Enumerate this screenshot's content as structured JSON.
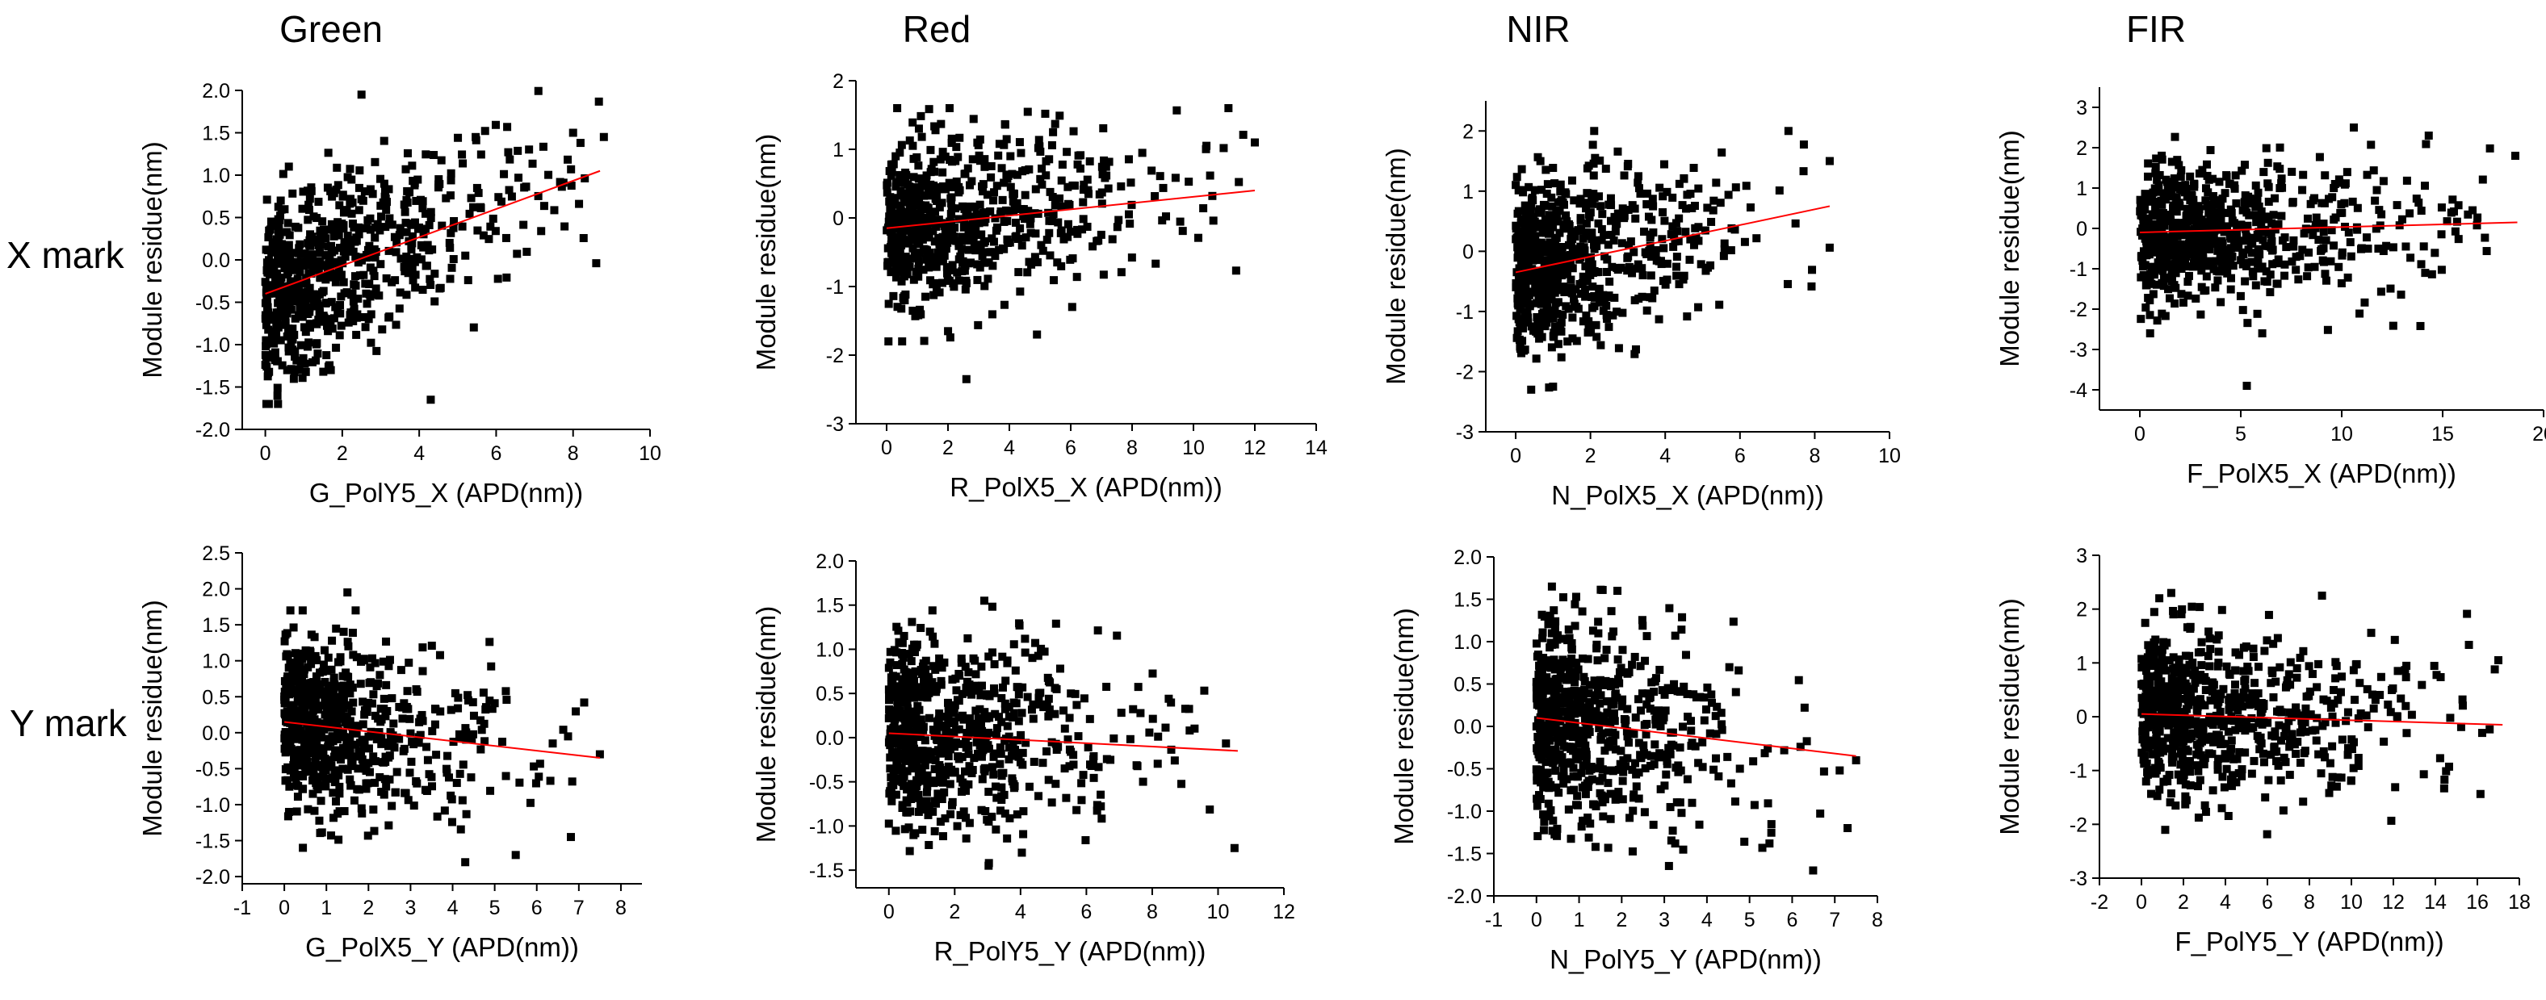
{
  "figure": {
    "column_titles": [
      "Green",
      "Red",
      "NIR",
      "FIR"
    ],
    "row_labels": [
      "X mark",
      "Y mark"
    ]
  },
  "chart_data": [
    {
      "type": "scatter",
      "xlabel": "G_PolY5_X (APD(nm))",
      "ylabel": "Module residue(nm)",
      "xlim": [
        -0.6,
        10
      ],
      "ylim": [
        -2.0,
        2.0
      ],
      "xticks": [
        0,
        2,
        4,
        6,
        8,
        10
      ],
      "xtick_labels": [
        "0",
        "2",
        "4",
        "6",
        "8",
        "10"
      ],
      "yticks": [
        -2.0,
        -1.5,
        -1.0,
        -0.5,
        0.0,
        0.5,
        1.0,
        1.5,
        2.0
      ],
      "ytick_labels": [
        "-2.0",
        "-1.5",
        "-1.0",
        "-0.5",
        "0.0",
        "0.5",
        "1.0",
        "1.5",
        "2.0"
      ],
      "fit": {
        "x": [
          0,
          8.7
        ],
        "y": [
          -0.4,
          1.05
        ]
      },
      "point_count": 700,
      "x_distribution": {
        "scale": 2.2,
        "max": 8.8
      },
      "y_noise_sd": 0.55,
      "y_clip": [
        -1.7,
        2.0
      ],
      "outliers": [
        [
          2.5,
          1.95
        ],
        [
          4.3,
          -1.65
        ],
        [
          8.0,
          1.5
        ],
        [
          8.8,
          1.45
        ]
      ]
    },
    {
      "type": "scatter",
      "xlabel": "R_PolX5_X (APD(nm))",
      "ylabel": "Module residue(nm)",
      "xlim": [
        -1,
        14
      ],
      "ylim": [
        -3,
        2
      ],
      "xticks": [
        0,
        2,
        4,
        6,
        8,
        10,
        12,
        14
      ],
      "xtick_labels": [
        "0",
        "2",
        "4",
        "6",
        "8",
        "10",
        "12",
        "14"
      ],
      "yticks": [
        -3,
        -2,
        -1,
        0,
        1,
        2
      ],
      "ytick_labels": [
        "-3",
        "-2",
        "-1",
        "0",
        "1",
        "2"
      ],
      "fit": {
        "x": [
          0,
          12
        ],
        "y": [
          -0.15,
          0.4
        ]
      },
      "point_count": 700,
      "x_distribution": {
        "scale": 2.8,
        "max": 12
      },
      "y_noise_sd": 0.6,
      "y_clip": [
        -1.8,
        1.6
      ],
      "outliers": [
        [
          2.6,
          -2.35
        ],
        [
          4.9,
          -1.7
        ],
        [
          12.0,
          1.1
        ]
      ]
    },
    {
      "type": "scatter",
      "xlabel": "N_PolX5_X (APD(nm))",
      "ylabel": "Module residue(nm)",
      "xlim": [
        -0.8,
        10
      ],
      "ylim": [
        -3,
        2.5
      ],
      "xticks": [
        0,
        2,
        4,
        6,
        8,
        10
      ],
      "xtick_labels": [
        "0",
        "2",
        "4",
        "6",
        "8",
        "10"
      ],
      "yticks": [
        -3,
        -2,
        -1,
        0,
        1,
        2
      ],
      "ytick_labels": [
        "-3",
        "-2",
        "-1",
        "0",
        "1",
        "2"
      ],
      "fit": {
        "x": [
          0,
          8.4
        ],
        "y": [
          -0.35,
          0.75
        ]
      },
      "point_count": 700,
      "x_distribution": {
        "scale": 2.0,
        "max": 8.5
      },
      "y_noise_sd": 0.7,
      "y_clip": [
        -2.3,
        2.0
      ],
      "outliers": [
        [
          1.0,
          -2.25
        ],
        [
          2.1,
          2.0
        ],
        [
          8.4,
          1.5
        ]
      ]
    },
    {
      "type": "scatter",
      "xlabel": "F_PolX5_X (APD(nm))",
      "ylabel": "Module residue(nm)",
      "xlim": [
        -2,
        20
      ],
      "ylim": [
        -4.5,
        3.5
      ],
      "xticks": [
        0,
        5,
        10,
        15,
        20
      ],
      "xtick_labels": [
        "0",
        "5",
        "10",
        "15",
        "20"
      ],
      "yticks": [
        -4,
        -3,
        -2,
        -1,
        0,
        1,
        2,
        3
      ],
      "ytick_labels": [
        "-4",
        "-3",
        "-2",
        "-1",
        "0",
        "1",
        "2",
        "3"
      ],
      "fit": {
        "x": [
          0,
          18.7
        ],
        "y": [
          -0.1,
          0.15
        ]
      },
      "point_count": 700,
      "x_distribution": {
        "scale": 5.0,
        "max": 18.7
      },
      "y_noise_sd": 0.85,
      "y_clip": [
        -2.6,
        2.3
      ],
      "outliers": [
        [
          5.3,
          -3.9
        ],
        [
          10.6,
          2.5
        ],
        [
          18.6,
          1.8
        ]
      ]
    },
    {
      "type": "scatter",
      "xlabel": "G_PolX5_Y (APD(nm))",
      "ylabel": "Module residue(nm)",
      "xlim": [
        -1,
        8.5
      ],
      "ylim": [
        -2.1,
        2.5
      ],
      "xticks": [
        -1,
        0,
        1,
        2,
        3,
        4,
        5,
        6,
        7,
        8
      ],
      "xtick_labels": [
        "-1",
        "0",
        "1",
        "2",
        "3",
        "4",
        "5",
        "6",
        "7",
        "8"
      ],
      "yticks": [
        -2.0,
        -1.5,
        -1.0,
        -0.5,
        0.0,
        0.5,
        1.0,
        1.5,
        2.0,
        2.5
      ],
      "ytick_labels": [
        "-2.0",
        "-1.5",
        "-1.0",
        "-0.5",
        "0.0",
        "0.5",
        "1.0",
        "1.5",
        "2.0",
        "2.5"
      ],
      "fit": {
        "x": [
          0,
          7.5
        ],
        "y": [
          0.15,
          -0.35
        ]
      },
      "point_count": 700,
      "x_distribution": {
        "scale": 1.6,
        "max": 7.5
      },
      "y_noise_sd": 0.6,
      "y_clip": [
        -1.6,
        1.7
      ],
      "outliers": [
        [
          1.5,
          1.95
        ],
        [
          4.3,
          -1.8
        ],
        [
          5.5,
          -1.7
        ],
        [
          7.5,
          -0.3
        ]
      ]
    },
    {
      "type": "scatter",
      "xlabel": "R_PolY5_Y (APD(nm))",
      "ylabel": "Module residue(nm)",
      "xlim": [
        -1,
        12
      ],
      "ylim": [
        -1.7,
        2.0
      ],
      "xticks": [
        0,
        2,
        4,
        6,
        8,
        10,
        12
      ],
      "xtick_labels": [
        "0",
        "2",
        "4",
        "6",
        "8",
        "10",
        "12"
      ],
      "yticks": [
        -1.5,
        -1.0,
        -0.5,
        0.0,
        0.5,
        1.0,
        1.5,
        2.0
      ],
      "ytick_labels": [
        "-1.5",
        "-1.0",
        "-0.5",
        "0.0",
        "0.5",
        "1.0",
        "1.5",
        "2.0"
      ],
      "fit": {
        "x": [
          0,
          10.6
        ],
        "y": [
          0.05,
          -0.15
        ]
      },
      "point_count": 700,
      "x_distribution": {
        "scale": 2.6,
        "max": 10.6
      },
      "y_noise_sd": 0.55,
      "y_clip": [
        -1.45,
        1.5
      ],
      "outliers": [
        [
          2.9,
          1.55
        ],
        [
          10.5,
          -1.25
        ]
      ]
    },
    {
      "type": "scatter",
      "xlabel": "N_PolY5_Y (APD(nm))",
      "ylabel": "Module residue(nm)",
      "xlim": [
        -1,
        8
      ],
      "ylim": [
        -2.0,
        2.0
      ],
      "xticks": [
        -1,
        0,
        1,
        2,
        3,
        4,
        5,
        6,
        7,
        8
      ],
      "xtick_labels": [
        "-1",
        "0",
        "1",
        "2",
        "3",
        "4",
        "5",
        "6",
        "7",
        "8"
      ],
      "yticks": [
        -2.0,
        -1.5,
        -1.0,
        -0.5,
        0.0,
        0.5,
        1.0,
        1.5,
        2.0
      ],
      "ytick_labels": [
        "-2.0",
        "-1.5",
        "-1.0",
        "-0.5",
        "0.0",
        "0.5",
        "1.0",
        "1.5",
        "2.0"
      ],
      "fit": {
        "x": [
          0,
          7.5
        ],
        "y": [
          0.1,
          -0.35
        ]
      },
      "point_count": 700,
      "x_distribution": {
        "scale": 1.5,
        "max": 7.5
      },
      "y_noise_sd": 0.6,
      "y_clip": [
        -1.7,
        1.65
      ],
      "outliers": [
        [
          1.9,
          1.6
        ],
        [
          7.3,
          -1.2
        ],
        [
          7.5,
          -0.4
        ]
      ]
    },
    {
      "type": "scatter",
      "xlabel": "F_PolY5_Y (APD(nm))",
      "ylabel": "Module residue(nm)",
      "xlim": [
        -2,
        18
      ],
      "ylim": [
        -3,
        3
      ],
      "xticks": [
        -2,
        0,
        2,
        4,
        6,
        8,
        10,
        12,
        14,
        16,
        18
      ],
      "xtick_labels": [
        "-2",
        "0",
        "2",
        "4",
        "6",
        "8",
        "10",
        "12",
        "14",
        "16",
        "18"
      ],
      "yticks": [
        -3,
        -2,
        -1,
        0,
        1,
        2,
        3
      ],
      "ytick_labels": [
        "-3",
        "-2",
        "-1",
        "0",
        "1",
        "2",
        "3"
      ],
      "fit": {
        "x": [
          0,
          17.2
        ],
        "y": [
          0.05,
          -0.15
        ]
      },
      "point_count": 700,
      "x_distribution": {
        "scale": 4.5,
        "max": 17.2
      },
      "y_noise_sd": 0.75,
      "y_clip": [
        -2.3,
        2.3
      ],
      "outliers": [
        [
          8.6,
          2.25
        ],
        [
          17.0,
          1.05
        ]
      ]
    }
  ]
}
